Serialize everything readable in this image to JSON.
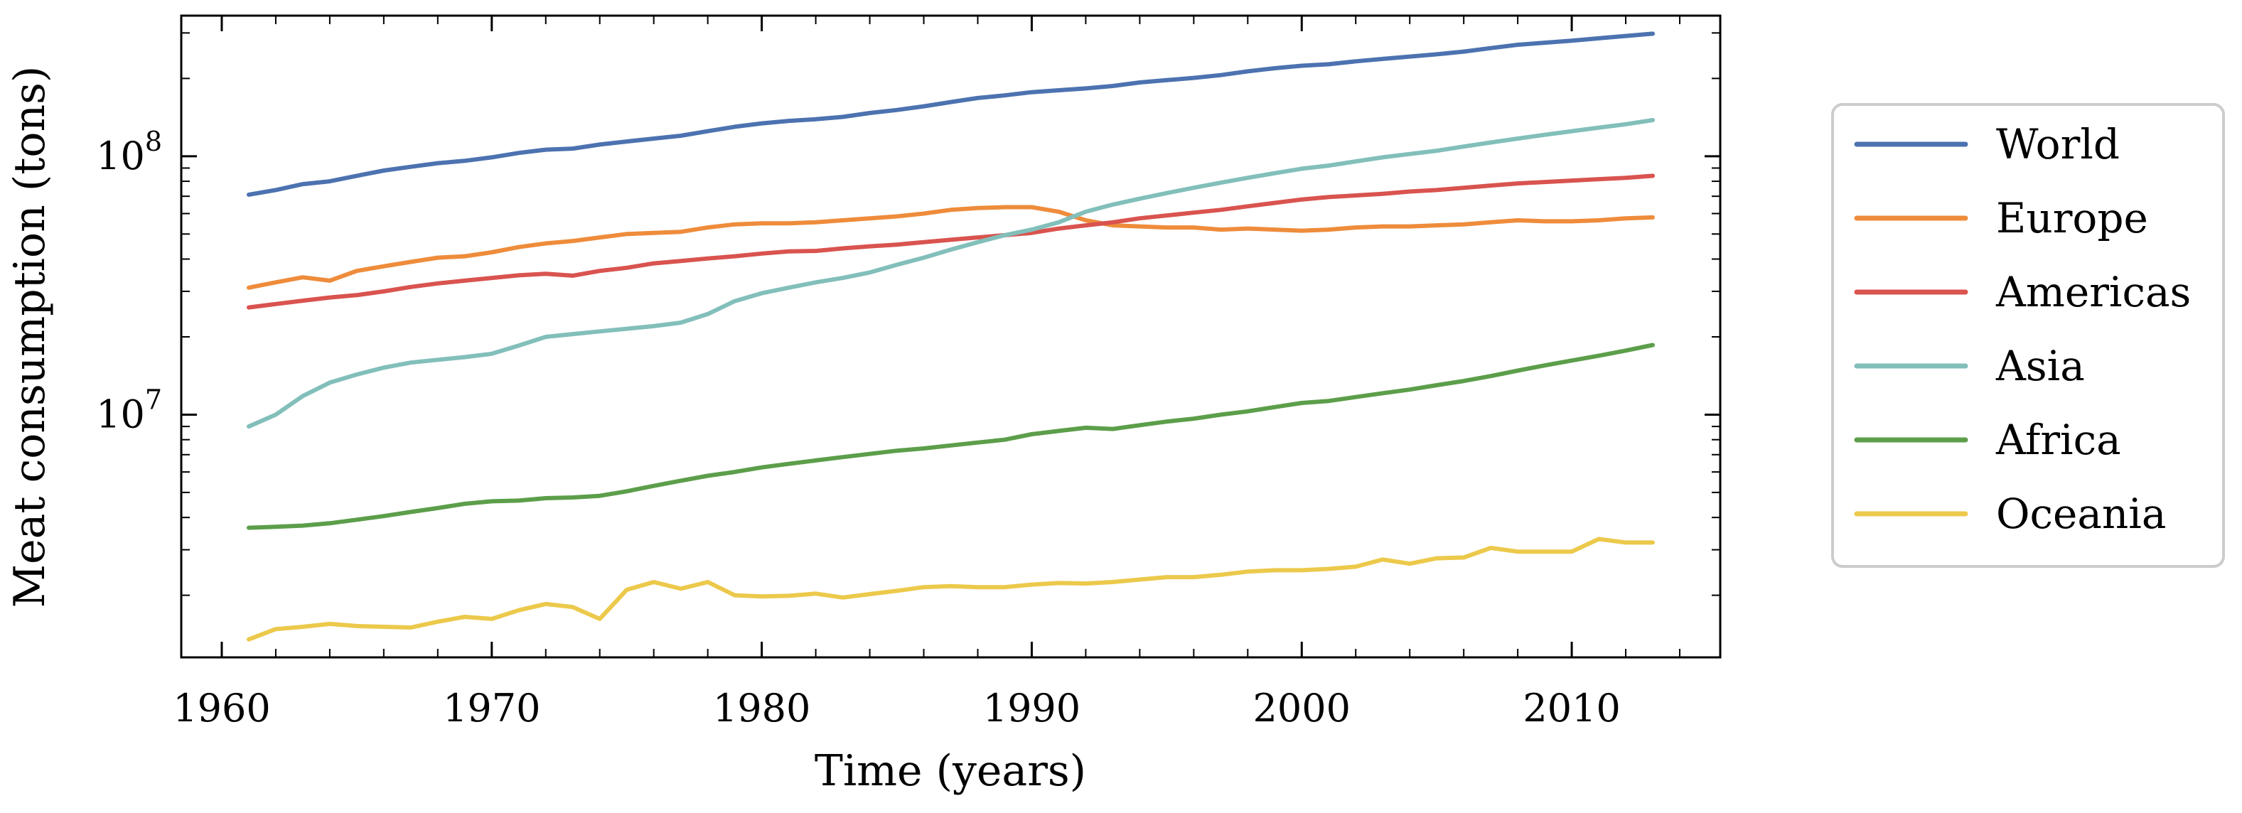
{
  "chart_data": {
    "type": "line",
    "title": "",
    "xlabel": "Time (years)",
    "ylabel": "Meat consumption (tons)",
    "yscale": "log",
    "xlim": [
      1958.5,
      2015.5
    ],
    "ylim": [
      1150000,
      350000000
    ],
    "xticks": [
      1960,
      1970,
      1980,
      1990,
      2000,
      2010
    ],
    "xtick_labels": [
      "1960",
      "1970",
      "1980",
      "1990",
      "2000",
      "2010"
    ],
    "yticks": [
      {
        "value": 10000000,
        "base": "10",
        "exp": "7"
      },
      {
        "value": 100000000,
        "base": "10",
        "exp": "8"
      }
    ],
    "legend_position": "right",
    "x": [
      1961,
      1962,
      1963,
      1964,
      1965,
      1966,
      1967,
      1968,
      1969,
      1970,
      1971,
      1972,
      1973,
      1974,
      1975,
      1976,
      1977,
      1978,
      1979,
      1980,
      1981,
      1982,
      1983,
      1984,
      1985,
      1986,
      1987,
      1988,
      1989,
      1990,
      1991,
      1992,
      1993,
      1994,
      1995,
      1996,
      1997,
      1998,
      1999,
      2000,
      2001,
      2002,
      2003,
      2004,
      2005,
      2006,
      2007,
      2008,
      2009,
      2010,
      2011,
      2012,
      2013
    ],
    "series": [
      {
        "name": "World",
        "color": "#4c72b0",
        "values": [
          71000000,
          74000000,
          78000000,
          80000000,
          84000000,
          88000000,
          91000000,
          94000000,
          96000000,
          99000000,
          103000000,
          106000000,
          107000000,
          111000000,
          114000000,
          117000000,
          120000000,
          125000000,
          130000000,
          134000000,
          137000000,
          139000000,
          142000000,
          147000000,
          151000000,
          156000000,
          162000000,
          168000000,
          172000000,
          177000000,
          180000000,
          183000000,
          187000000,
          193000000,
          197000000,
          201000000,
          206000000,
          213000000,
          219000000,
          224000000,
          227000000,
          233000000,
          238000000,
          243000000,
          248000000,
          254000000,
          262000000,
          270000000,
          275000000,
          280000000,
          286000000,
          292000000,
          298000000
        ]
      },
      {
        "name": "Europe",
        "color": "#ee8c3b",
        "values": [
          31000000,
          32500000,
          34000000,
          33000000,
          36000000,
          37500000,
          39000000,
          40500000,
          41000000,
          42500000,
          44500000,
          46000000,
          47000000,
          48500000,
          50000000,
          50500000,
          51000000,
          53000000,
          54500000,
          55000000,
          55000000,
          55500000,
          56500000,
          57500000,
          58500000,
          60000000,
          62000000,
          63000000,
          63500000,
          63500000,
          61000000,
          56500000,
          54000000,
          53500000,
          53000000,
          53000000,
          52000000,
          52500000,
          52000000,
          51500000,
          52000000,
          53000000,
          53500000,
          53500000,
          54000000,
          54500000,
          55500000,
          56500000,
          56000000,
          56000000,
          56500000,
          57500000,
          58000000
        ]
      },
      {
        "name": "Americas",
        "color": "#d9534f",
        "values": [
          26000000,
          26800000,
          27600000,
          28400000,
          29000000,
          30000000,
          31200000,
          32200000,
          33000000,
          33800000,
          34600000,
          35100000,
          34500000,
          36000000,
          37000000,
          38500000,
          39300000,
          40200000,
          41000000,
          42000000,
          42800000,
          43000000,
          44000000,
          44800000,
          45500000,
          46500000,
          47500000,
          48500000,
          49500000,
          50500000,
          52500000,
          54000000,
          55500000,
          57500000,
          59000000,
          60500000,
          62000000,
          64000000,
          66000000,
          68000000,
          69500000,
          70500000,
          71500000,
          73000000,
          74000000,
          75500000,
          77000000,
          78500000,
          79500000,
          80500000,
          81500000,
          82500000,
          84000000
        ]
      },
      {
        "name": "Asia",
        "color": "#82bfba",
        "values": [
          9000000,
          10000000,
          11800000,
          13300000,
          14300000,
          15200000,
          15900000,
          16300000,
          16700000,
          17200000,
          18500000,
          20000000,
          20500000,
          21000000,
          21500000,
          22000000,
          22700000,
          24500000,
          27500000,
          29500000,
          31000000,
          32500000,
          33800000,
          35500000,
          38000000,
          40500000,
          43500000,
          46500000,
          49500000,
          52000000,
          55500000,
          61000000,
          65000000,
          68500000,
          72000000,
          75500000,
          79000000,
          82500000,
          86000000,
          89500000,
          92000000,
          95500000,
          99000000,
          102000000,
          105000000,
          109000000,
          113000000,
          117000000,
          121000000,
          125000000,
          129000000,
          133000000,
          138000000
        ]
      },
      {
        "name": "Africa",
        "color": "#5c9e4a",
        "values": [
          3650000,
          3680000,
          3720000,
          3800000,
          3920000,
          4050000,
          4200000,
          4350000,
          4520000,
          4620000,
          4650000,
          4750000,
          4780000,
          4850000,
          5050000,
          5300000,
          5550000,
          5800000,
          6000000,
          6250000,
          6450000,
          6650000,
          6850000,
          7050000,
          7250000,
          7400000,
          7600000,
          7800000,
          8000000,
          8400000,
          8650000,
          8900000,
          8800000,
          9100000,
          9400000,
          9650000,
          10000000,
          10300000,
          10700000,
          11100000,
          11300000,
          11700000,
          12100000,
          12500000,
          13000000,
          13500000,
          14100000,
          14800000,
          15500000,
          16200000,
          16900000,
          17700000,
          18600000
        ]
      },
      {
        "name": "Oceania",
        "color": "#ecc94b",
        "values": [
          1350000,
          1480000,
          1510000,
          1550000,
          1520000,
          1510000,
          1500000,
          1580000,
          1650000,
          1620000,
          1750000,
          1850000,
          1800000,
          1620000,
          2100000,
          2250000,
          2120000,
          2250000,
          2000000,
          1980000,
          1990000,
          2030000,
          1960000,
          2020000,
          2080000,
          2150000,
          2170000,
          2150000,
          2150000,
          2200000,
          2230000,
          2220000,
          2250000,
          2300000,
          2350000,
          2350000,
          2400000,
          2470000,
          2500000,
          2500000,
          2530000,
          2580000,
          2750000,
          2650000,
          2780000,
          2800000,
          3050000,
          2950000,
          2950000,
          2950000,
          3300000,
          3200000,
          3200000
        ]
      }
    ]
  }
}
